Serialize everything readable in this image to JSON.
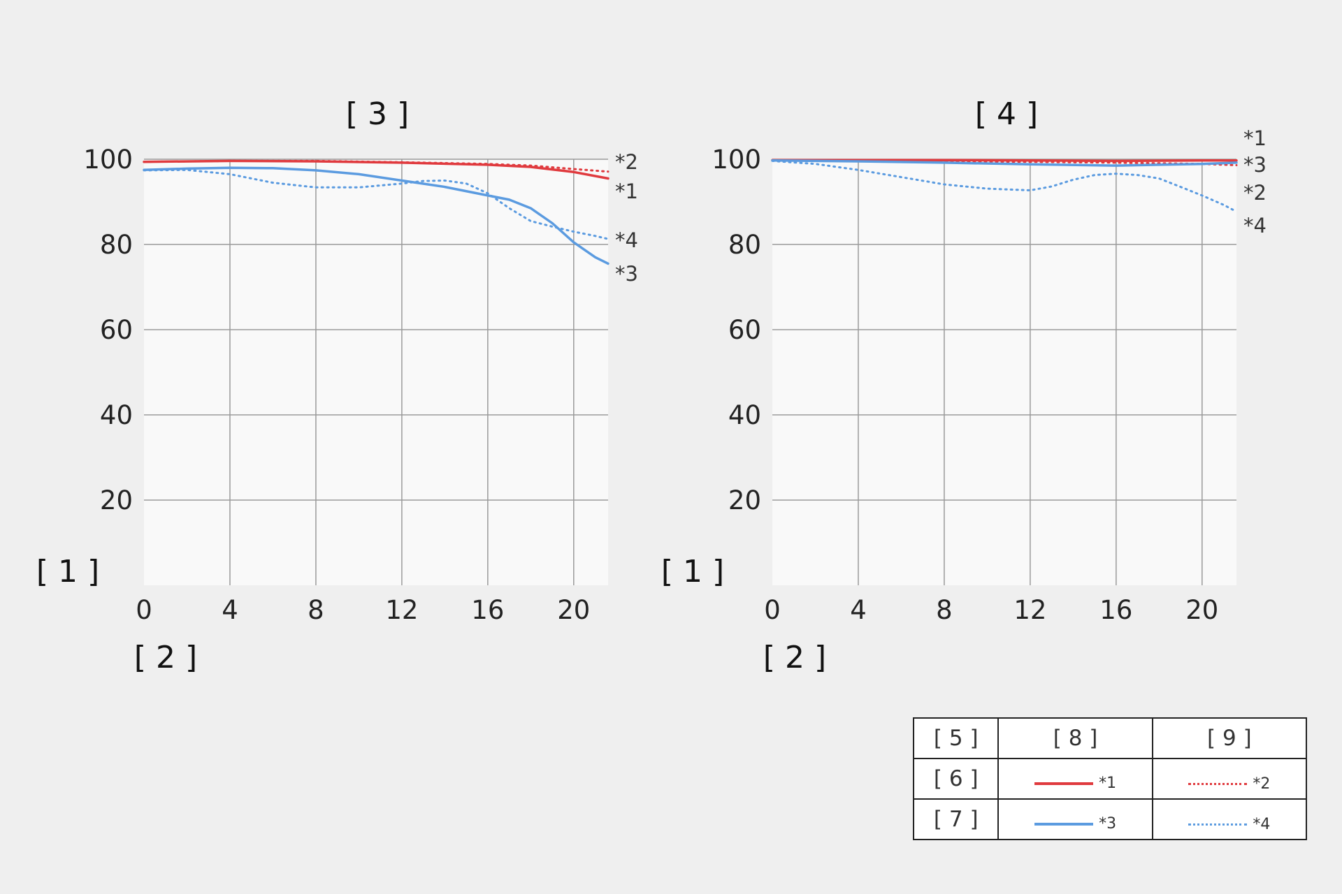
{
  "colors": {
    "sagittal": "#e03a3e",
    "meridional": "#5b9be0",
    "grid": "#9a9a9a",
    "plot_bg": "#f9f9f9",
    "page_bg": "#efefef"
  },
  "legend": {
    "header": [
      "[ 5 ]",
      "[ 8 ]",
      "[ 9 ]"
    ],
    "row1": {
      "label": "[ 6 ]",
      "solid": "*1",
      "dotted": "*2"
    },
    "row2": {
      "label": "[ 7 ]",
      "solid": "*3",
      "dotted": "*4"
    }
  },
  "chart_data": [
    {
      "type": "line",
      "title": "[ 3 ]",
      "ylabel": "[ 1 ]",
      "xlabel": "[ 2 ]",
      "xlim": [
        0,
        21.6
      ],
      "ylim": [
        0,
        100
      ],
      "xticks": [
        "0",
        "4",
        "8",
        "12",
        "16",
        "20"
      ],
      "yticks": [
        "100",
        "80",
        "60",
        "40",
        "20"
      ],
      "grid": true,
      "series": [
        {
          "name": "*1",
          "color": "#e03a3e",
          "style": "solid",
          "x": [
            0,
            4,
            8,
            12,
            16,
            18,
            20,
            21.6
          ],
          "y": [
            99.4,
            99.6,
            99.5,
            99.2,
            98.7,
            98.2,
            97,
            95.5
          ]
        },
        {
          "name": "*2",
          "color": "#e03a3e",
          "style": "dotted",
          "x": [
            0,
            4,
            8,
            12,
            16,
            18,
            20,
            21.6
          ],
          "y": [
            99.4,
            99.6,
            99.6,
            99.3,
            98.9,
            98.5,
            97.7,
            97.1
          ]
        },
        {
          "name": "*3",
          "color": "#5b9be0",
          "style": "solid",
          "x": [
            0,
            2,
            4,
            6,
            8,
            10,
            12,
            14,
            16,
            17,
            18,
            19,
            20,
            21,
            21.6
          ],
          "y": [
            97.5,
            97.8,
            98,
            97.9,
            97.4,
            96.5,
            95,
            93.5,
            91.5,
            90.5,
            88.5,
            85,
            80.5,
            77,
            75.5
          ]
        },
        {
          "name": "*4",
          "color": "#5b9be0",
          "style": "dotted",
          "x": [
            0,
            2,
            4,
            6,
            8,
            10,
            12,
            13,
            14,
            15,
            16,
            17,
            18,
            19,
            20,
            21,
            21.6
          ],
          "y": [
            97.4,
            97.5,
            96.5,
            94.5,
            93.4,
            93.4,
            94.3,
            94.9,
            95,
            94.3,
            92,
            88.5,
            85.5,
            84.2,
            83,
            82,
            81.3
          ]
        }
      ],
      "end_labels": [
        "*2",
        "*1",
        "*4",
        "*3"
      ]
    },
    {
      "type": "line",
      "title": "[ 4 ]",
      "ylabel": "[ 1 ]",
      "xlabel": "[ 2 ]",
      "xlim": [
        0,
        21.6
      ],
      "ylim": [
        0,
        100
      ],
      "xticks": [
        "0",
        "4",
        "8",
        "12",
        "16",
        "20"
      ],
      "yticks": [
        "100",
        "80",
        "60",
        "40",
        "20"
      ],
      "grid": true,
      "series": [
        {
          "name": "*1",
          "color": "#e03a3e",
          "style": "solid",
          "x": [
            0,
            4,
            8,
            12,
            16,
            20,
            21.6
          ],
          "y": [
            99.8,
            99.8,
            99.8,
            99.7,
            99.6,
            99.7,
            99.7
          ]
        },
        {
          "name": "*2",
          "color": "#e03a3e",
          "style": "dotted",
          "x": [
            0,
            4,
            8,
            12,
            16,
            20,
            21.6
          ],
          "y": [
            99.7,
            99.6,
            99.5,
            99.4,
            99.2,
            98.9,
            98.6
          ]
        },
        {
          "name": "*3",
          "color": "#5b9be0",
          "style": "solid",
          "x": [
            0,
            4,
            8,
            12,
            16,
            20,
            21.6
          ],
          "y": [
            99.7,
            99.5,
            99.2,
            98.8,
            98.5,
            98.9,
            99.2
          ]
        },
        {
          "name": "*4",
          "color": "#5b9be0",
          "style": "dotted",
          "x": [
            0,
            2,
            4,
            6,
            8,
            10,
            12,
            13,
            14,
            15,
            16,
            17,
            18,
            19,
            20,
            21,
            21.6
          ],
          "y": [
            99.6,
            98.9,
            97.5,
            95.8,
            94.1,
            93.1,
            92.7,
            93.6,
            95.2,
            96.3,
            96.6,
            96.3,
            95.5,
            93.5,
            91.5,
            89.3,
            87.7
          ]
        }
      ],
      "end_labels": [
        "*1",
        "*3",
        "*2",
        "*4"
      ]
    }
  ]
}
